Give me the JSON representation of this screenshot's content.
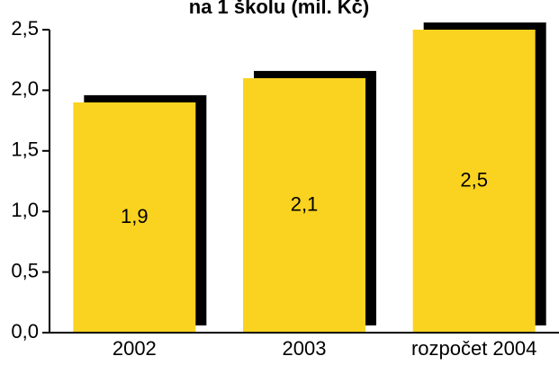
{
  "chart_data": {
    "type": "bar",
    "title": "na 1 školu (mil. Kč)",
    "categories": [
      "2002",
      "2003",
      "rozpočet 2004"
    ],
    "values": [
      1.9,
      2.1,
      2.5
    ],
    "value_labels": [
      "1,9",
      "2,1",
      "2,5"
    ],
    "color": "#fad320",
    "shadow_color": "#000000",
    "ylim": [
      0,
      2.5
    ],
    "yticks": [
      {
        "value": 0,
        "label": "0,0"
      },
      {
        "value": 0.5,
        "label": "0,5"
      },
      {
        "value": 1,
        "label": "1,0"
      },
      {
        "value": 1.5,
        "label": "1,5"
      },
      {
        "value": 2,
        "label": "2,0"
      },
      {
        "value": 2.5,
        "label": "2,5"
      }
    ]
  }
}
